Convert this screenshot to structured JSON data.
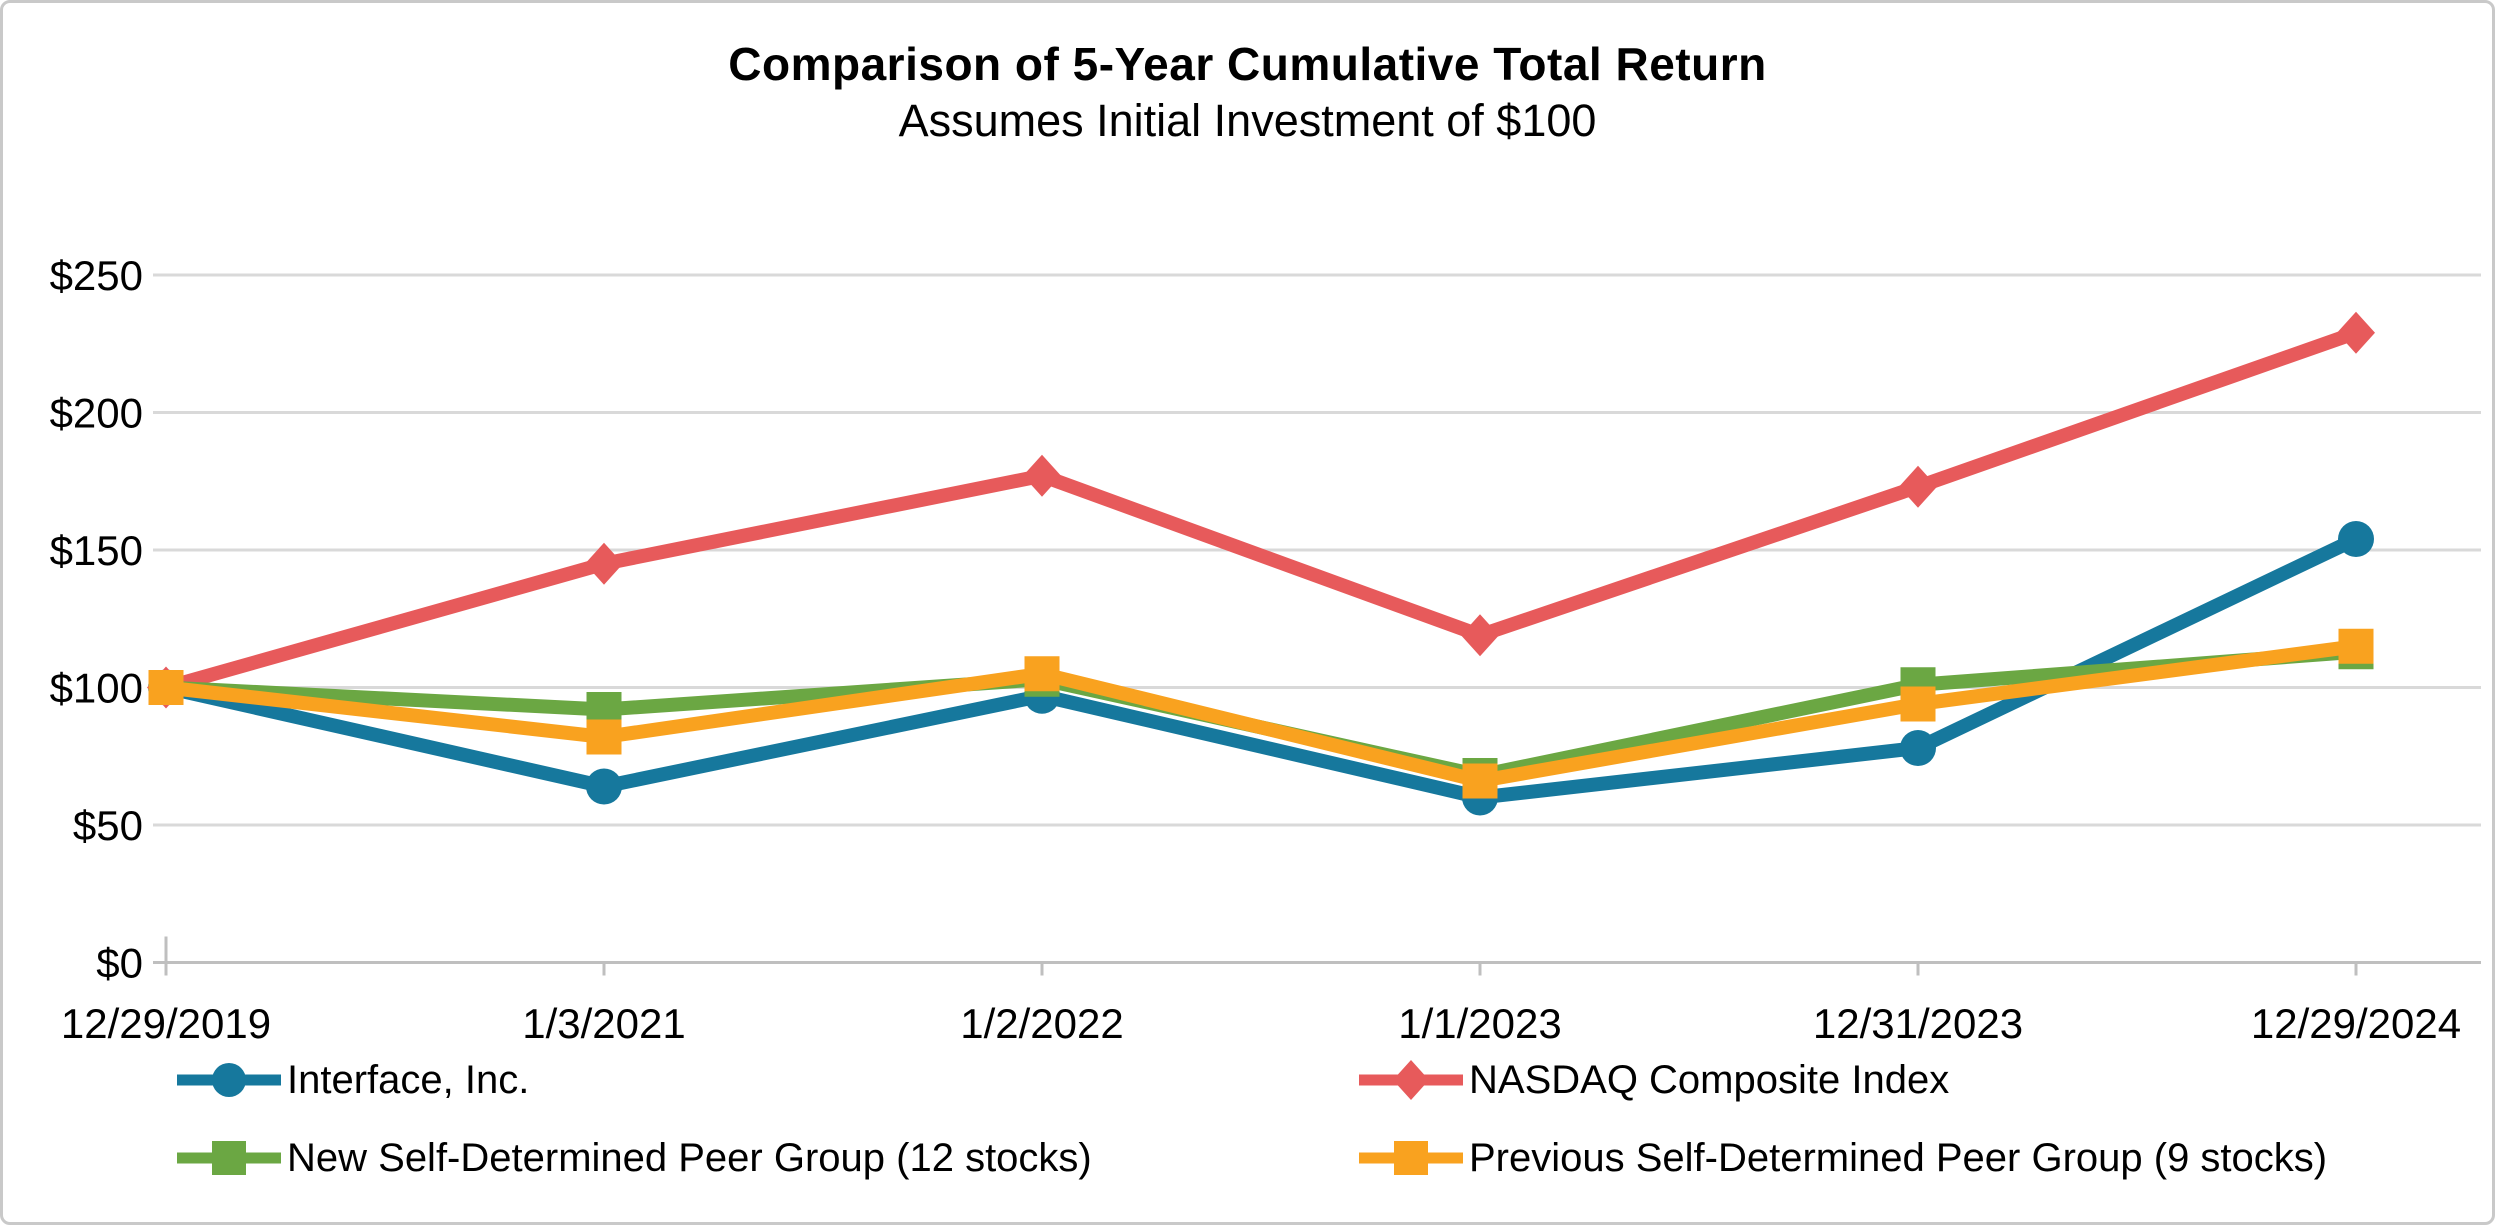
{
  "header": {
    "title": "Comparison of 5-Year Cumulative Total Return",
    "subtitle": "Assumes Initial Investment of $100"
  },
  "colors": {
    "interface_teal": "#16789D",
    "nasdaq_red": "#E75A5B",
    "new_peer_green": "#6BA743",
    "previous_peer_orange": "#F9A21F",
    "gridline": "#D9D9D9",
    "axis": "#BFBFBF",
    "text": "#000000",
    "frame_border": "#C9C9C9"
  },
  "chart_data": {
    "type": "line",
    "title": "Comparison of 5-Year Cumulative Total Return",
    "subtitle": "Assumes Initial Investment of $100",
    "categories": [
      "12/29/2019",
      "1/3/2021",
      "1/2/2022",
      "1/1/2023",
      "12/31/2023",
      "12/29/2024"
    ],
    "y_ticks": [
      0,
      50,
      100,
      150,
      200,
      250
    ],
    "y_tick_labels": [
      "$0",
      "$50",
      "$100",
      "$150",
      "$200",
      "$250"
    ],
    "ylim": [
      0,
      250
    ],
    "grid": "horizontal",
    "legend_position": "bottom-two-columns",
    "series": [
      {
        "name": "Interface, Inc.",
        "marker": "circle",
        "color": "#16789D",
        "values": [
          100,
          64,
          97,
          60,
          78,
          154
        ]
      },
      {
        "name": "NASDAQ Composite Index",
        "marker": "diamond",
        "color": "#E75A5B",
        "values": [
          100,
          145,
          177,
          119,
          173,
          229
        ]
      },
      {
        "name": "New Self-Determined Peer Group (12 stocks)",
        "marker": "square",
        "color": "#6BA743",
        "values": [
          100,
          92,
          103,
          68,
          101,
          113
        ]
      },
      {
        "name": "Previous Self-Determined Peer Group (9 stocks)",
        "marker": "square",
        "color": "#F9A21F",
        "values": [
          100,
          82,
          105,
          66,
          94,
          115
        ]
      }
    ]
  }
}
